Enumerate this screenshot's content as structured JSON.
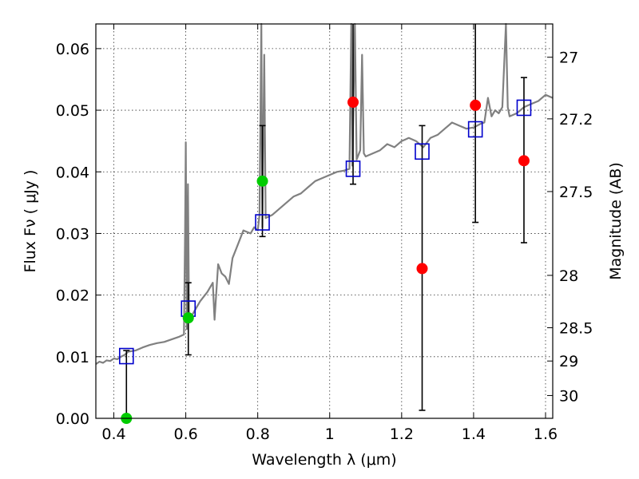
{
  "chart_data": {
    "type": "scatter",
    "xlabel": "Wavelength  λ (μm)",
    "ylabel_left": "Flux  Fν  ( μJy )",
    "ylabel_right": "Magnitude (AB)",
    "xlim": [
      0.35,
      1.62
    ],
    "ylim": [
      0.0,
      0.064
    ],
    "grid": true,
    "x_ticks": [
      0.4,
      0.6,
      0.8,
      1.0,
      1.2,
      1.4,
      1.6
    ],
    "x_tick_labels": [
      "0.4",
      "0.6",
      "0.8",
      "1",
      "1.2",
      "1.4",
      "1.6"
    ],
    "y_ticks": [
      0.0,
      0.01,
      0.02,
      0.03,
      0.04,
      0.05,
      0.06
    ],
    "y_tick_labels": [
      "0.00",
      "0.01",
      "0.02",
      "0.03",
      "0.04",
      "0.05",
      "0.06"
    ],
    "right_ticks": [
      {
        "flux": 0.0586,
        "label": "27"
      },
      {
        "flux": 0.0486,
        "label": "27.2"
      },
      {
        "flux": 0.0368,
        "label": "27.5"
      },
      {
        "flux": 0.0232,
        "label": "28"
      },
      {
        "flux": 0.0147,
        "label": "28.5"
      },
      {
        "flux": 0.0093,
        "label": "29"
      },
      {
        "flux": 0.0037,
        "label": "30"
      }
    ],
    "spectrum": {
      "color": "#808080",
      "points": [
        [
          0.35,
          0.0088
        ],
        [
          0.36,
          0.0092
        ],
        [
          0.37,
          0.009
        ],
        [
          0.38,
          0.0094
        ],
        [
          0.39,
          0.0093
        ],
        [
          0.4,
          0.0097
        ],
        [
          0.41,
          0.0096
        ],
        [
          0.42,
          0.01
        ],
        [
          0.43,
          0.0103
        ],
        [
          0.44,
          0.0108
        ],
        [
          0.46,
          0.011
        ],
        [
          0.48,
          0.0115
        ],
        [
          0.5,
          0.0119
        ],
        [
          0.52,
          0.0122
        ],
        [
          0.54,
          0.0124
        ],
        [
          0.56,
          0.0128
        ],
        [
          0.58,
          0.0132
        ],
        [
          0.595,
          0.0136
        ],
        [
          0.598,
          0.03
        ],
        [
          0.6,
          0.0448
        ],
        [
          0.603,
          0.0145
        ],
        [
          0.606,
          0.038
        ],
        [
          0.609,
          0.016
        ],
        [
          0.62,
          0.017
        ],
        [
          0.64,
          0.019
        ],
        [
          0.66,
          0.0205
        ],
        [
          0.675,
          0.022
        ],
        [
          0.68,
          0.016
        ],
        [
          0.69,
          0.025
        ],
        [
          0.7,
          0.0235
        ],
        [
          0.71,
          0.023
        ],
        [
          0.72,
          0.0218
        ],
        [
          0.73,
          0.026
        ],
        [
          0.74,
          0.0275
        ],
        [
          0.75,
          0.029
        ],
        [
          0.76,
          0.0305
        ],
        [
          0.78,
          0.03
        ],
        [
          0.79,
          0.031
        ],
        [
          0.8,
          0.0305
        ],
        [
          0.805,
          0.033
        ],
        [
          0.81,
          0.064
        ],
        [
          0.813,
          0.031
        ],
        [
          0.818,
          0.059
        ],
        [
          0.822,
          0.0325
        ],
        [
          0.84,
          0.033
        ],
        [
          0.86,
          0.034
        ],
        [
          0.88,
          0.035
        ],
        [
          0.9,
          0.036
        ],
        [
          0.92,
          0.0365
        ],
        [
          0.94,
          0.0375
        ],
        [
          0.96,
          0.0385
        ],
        [
          0.98,
          0.039
        ],
        [
          1.0,
          0.0395
        ],
        [
          1.02,
          0.04
        ],
        [
          1.04,
          0.0402
        ],
        [
          1.055,
          0.0405
        ],
        [
          1.06,
          0.064
        ],
        [
          1.063,
          0.041
        ],
        [
          1.07,
          0.064
        ],
        [
          1.075,
          0.042
        ],
        [
          1.085,
          0.0435
        ],
        [
          1.09,
          0.059
        ],
        [
          1.095,
          0.043
        ],
        [
          1.1,
          0.0425
        ],
        [
          1.12,
          0.043
        ],
        [
          1.14,
          0.0435
        ],
        [
          1.16,
          0.0445
        ],
        [
          1.18,
          0.044
        ],
        [
          1.2,
          0.045
        ],
        [
          1.22,
          0.0455
        ],
        [
          1.24,
          0.045
        ],
        [
          1.26,
          0.044
        ],
        [
          1.28,
          0.0455
        ],
        [
          1.3,
          0.046
        ],
        [
          1.32,
          0.047
        ],
        [
          1.34,
          0.048
        ],
        [
          1.36,
          0.0475
        ],
        [
          1.38,
          0.047
        ],
        [
          1.4,
          0.0472
        ],
        [
          1.42,
          0.0478
        ],
        [
          1.43,
          0.048
        ],
        [
          1.44,
          0.052
        ],
        [
          1.45,
          0.049
        ],
        [
          1.46,
          0.05
        ],
        [
          1.47,
          0.0495
        ],
        [
          1.48,
          0.0505
        ],
        [
          1.49,
          0.064
        ],
        [
          1.495,
          0.0505
        ],
        [
          1.5,
          0.049
        ],
        [
          1.52,
          0.0495
        ],
        [
          1.54,
          0.0505
        ],
        [
          1.56,
          0.051
        ],
        [
          1.58,
          0.0515
        ],
        [
          1.6,
          0.0525
        ],
        [
          1.62,
          0.052
        ]
      ]
    },
    "model_squares": {
      "color": "#0000cc",
      "points": [
        [
          0.435,
          0.0101
        ],
        [
          0.607,
          0.0178
        ],
        [
          0.813,
          0.0318
        ],
        [
          1.065,
          0.0405
        ],
        [
          1.257,
          0.0433
        ],
        [
          1.405,
          0.0469
        ],
        [
          1.54,
          0.0504
        ]
      ]
    },
    "detections": {
      "color": "#00cc00",
      "points": [
        {
          "x": 0.435,
          "y": 0.0,
          "lo": 0.0,
          "hi": 0.011
        },
        {
          "x": 0.607,
          "y": 0.0163,
          "lo": 0.0103,
          "hi": 0.022
        },
        {
          "x": 0.813,
          "y": 0.0385,
          "lo": 0.0295,
          "hi": 0.0475
        }
      ]
    },
    "measurements": {
      "color": "#ff0000",
      "points": [
        {
          "x": 1.065,
          "y": 0.0513,
          "lo": 0.038,
          "hi": 0.064
        },
        {
          "x": 1.257,
          "y": 0.0243,
          "lo": 0.0013,
          "hi": 0.0475
        },
        {
          "x": 1.405,
          "y": 0.0508,
          "lo": 0.0318,
          "hi": 0.064
        },
        {
          "x": 1.54,
          "y": 0.0418,
          "lo": 0.0285,
          "hi": 0.0553
        }
      ]
    }
  }
}
